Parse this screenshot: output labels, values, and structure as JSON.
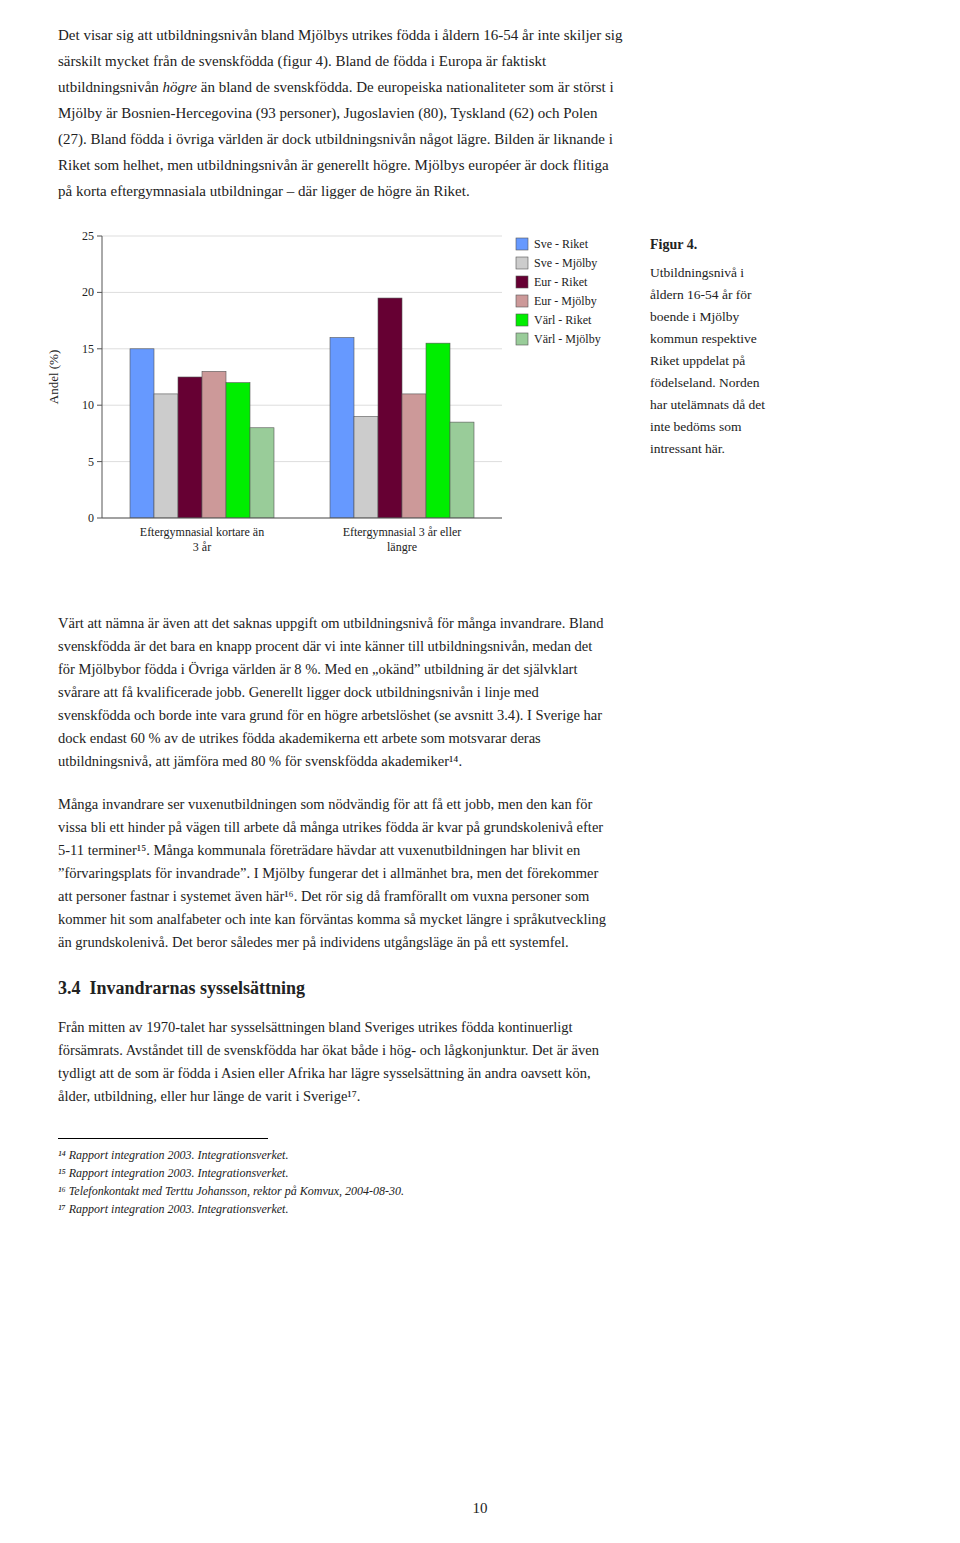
{
  "top_text": [
    [
      {
        "text": "Det visar sig att utbildningsnivån bland Mjölbys utrikes födda i åldern 16-54 år inte skiljer sig"
      }
    ],
    [
      {
        "text": "särskilt mycket från de svenskfödda (figur 4). Bland de födda i Europa är faktiskt"
      }
    ],
    [
      {
        "text": "utbildningsnivån "
      },
      {
        "text": "högre",
        "italic": true
      },
      {
        "text": " än bland de svenskfödda. De europeiska nationaliteter som är störst i"
      }
    ],
    [
      {
        "text": "Mjölby är Bosnien-Hercegovina (93 personer), Jugoslavien (80), Tyskland (62) och Polen"
      }
    ],
    [
      {
        "text": "(27). Bland födda i övriga världen är dock utbildningsnivån något lägre. Bilden är liknande i"
      }
    ],
    [
      {
        "text": "Riket som helhet, men utbildningsnivån är generellt högre. Mjölbys européer är dock flitiga"
      }
    ],
    [
      {
        "text": "på korta eftergymnasiala utbildningar – där ligger de högre än Riket."
      }
    ]
  ],
  "chart_data": {
    "type": "bar",
    "categories": [
      "Eftergymnasial kortare än\n3 år",
      "Eftergymnasial 3 år eller\nlängre"
    ],
    "series": [
      {
        "name": "Sve - Riket",
        "color": "#6699ff",
        "values": [
          15.0,
          16.0
        ]
      },
      {
        "name": "Sve - Mjölby",
        "color": "#cccccc",
        "values": [
          11.0,
          9.0
        ]
      },
      {
        "name": "Eur - Riket",
        "color": "#660033",
        "values": [
          12.5,
          19.5
        ]
      },
      {
        "name": "Eur - Mjölby",
        "color": "#cc9999",
        "values": [
          13.0,
          11.0
        ]
      },
      {
        "name": "Värl - Riket",
        "color": "#00ee00",
        "values": [
          12.0,
          15.5
        ]
      },
      {
        "name": "Värl - Mjölby",
        "color": "#99cc99",
        "values": [
          8.0,
          8.5
        ]
      }
    ],
    "ylabel": "Andel (%)",
    "ylim": [
      0,
      25
    ],
    "yticks": [
      0,
      5,
      10,
      15,
      20,
      25
    ],
    "grid": true,
    "legend": "right"
  },
  "caption": {
    "label": "Figur 4.",
    "lines": [
      "Utbildningsnivå i",
      "åldern 16-54 år för",
      "boende i Mjölby",
      "kommun respektive",
      "Riket uppdelat på",
      "födelseland. Norden",
      "har utelämnats då det",
      "inte bedöms som",
      "intressant här."
    ]
  },
  "bottom_text_1": [
    "Värt att nämna är även att det saknas uppgift om utbildningsnivå för många invandrare. Bland",
    "svenskfödda är det bara en knapp procent där vi inte känner till utbildningsnivån, medan det",
    "för Mjölbybor födda i Övriga världen är 8 %. Med en „okänd” utbildning är det självklart",
    "svårare att få kvalificerade jobb. Generellt ligger dock utbildningsnivån i linje med",
    "svenskfödda och borde inte vara grund för en högre arbetslöshet (se avsnitt 3.4). I Sverige har",
    "dock endast 60 % av de utrikes födda akademikerna ett arbete som motsvarar deras",
    "utbildningsnivå, att jämföra med 80 % för svenskfödda akademiker¹⁴."
  ],
  "bottom_text_2": [
    "Många invandrare ser vuxenutbildningen som nödvändig för att få ett jobb, men den kan för",
    "vissa bli ett hinder på vägen till arbete då många utrikes födda är kvar på grundskolenivå efter",
    "5-11 terminer¹⁵. Många kommunala företrädare hävdar att vuxenutbildningen har blivit en",
    "”förvaringsplats för invandrade”. I Mjölby fungerar det i allmänhet bra, men det förekommer",
    "att personer fastnar i systemet även här¹⁶. Det rör sig då framförallt om vuxna personer som",
    "kommer hit som analfabeter och inte kan förväntas komma så mycket längre i språkutveckling",
    "än grundskolenivå. Det beror således mer på individens utgångsläge än på ett systemfel."
  ],
  "section_heading": "3.4  Invandrarnas sysselsättning",
  "bottom_text_3": [
    "Från mitten av 1970-talet har sysselsättningen bland Sveriges utrikes födda kontinuerligt",
    "försämrats. Avståndet till de svenskfödda har ökat både i hög- och lågkonjunktur. Det är även",
    "tydligt att de som är födda i Asien eller Afrika har lägre sysselsättning än andra oavsett kön,",
    "ålder, utbildning, eller hur länge de varit i Sverige¹⁷."
  ],
  "footnotes": [
    "¹⁴ Rapport integration 2003. Integrationsverket.",
    "¹⁵ Rapport integration 2003. Integrationsverket.",
    "¹⁶ Telefonkontakt med Terttu Johansson, rektor på Komvux, 2004-08-30.",
    "¹⁷ Rapport integration 2003. Integrationsverket."
  ],
  "page_number": "10"
}
